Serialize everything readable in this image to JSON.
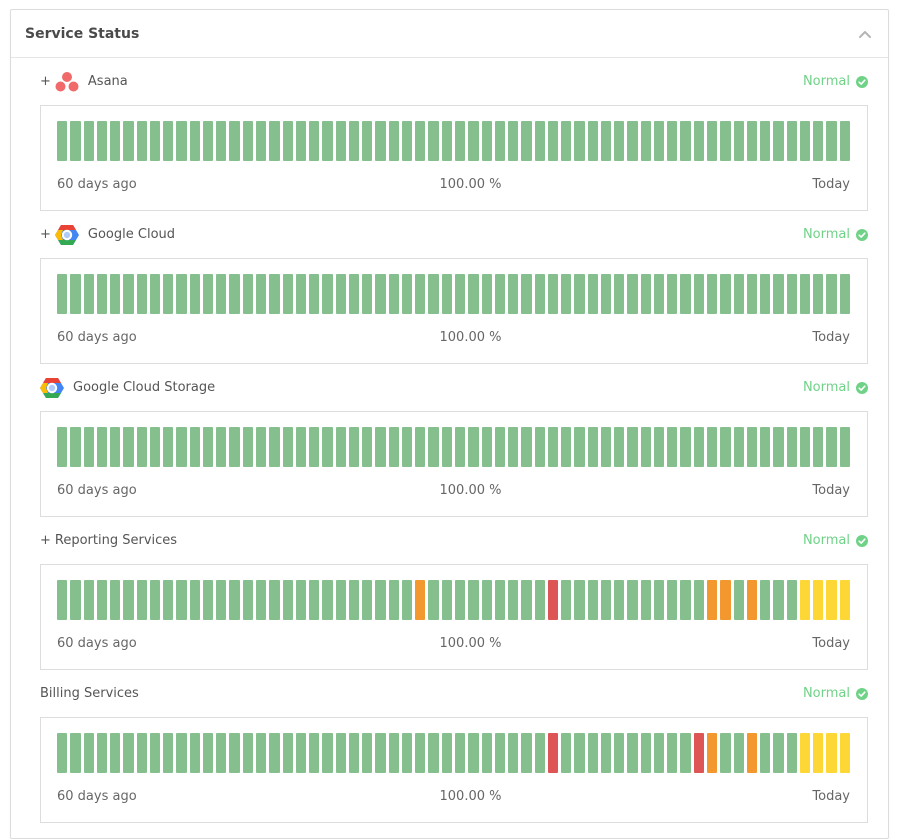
{
  "panel": {
    "title": "Service Status"
  },
  "labels": {
    "start": "60 days ago",
    "end": "Today"
  },
  "colors": {
    "up": "#86bf8e",
    "minor": "#f3982e",
    "major": "#dd5555",
    "warn": "#fcd736",
    "normal": "#6fd287"
  },
  "services": [
    {
      "name": "Asana",
      "expandable": true,
      "logo": "asana-logo-icon",
      "status": "Normal",
      "uptime": "100.00 %",
      "days": "up,up,up,up,up,up,up,up,up,up,up,up,up,up,up,up,up,up,up,up,up,up,up,up,up,up,up,up,up,up,up,up,up,up,up,up,up,up,up,up,up,up,up,up,up,up,up,up,up,up,up,up,up,up,up,up,up,up,up,up"
    },
    {
      "name": "Google Cloud",
      "expandable": true,
      "logo": "google-cloud-logo-icon",
      "status": "Normal",
      "uptime": "100.00 %",
      "days": "up,up,up,up,up,up,up,up,up,up,up,up,up,up,up,up,up,up,up,up,up,up,up,up,up,up,up,up,up,up,up,up,up,up,up,up,up,up,up,up,up,up,up,up,up,up,up,up,up,up,up,up,up,up,up,up,up,up,up,up"
    },
    {
      "name": "Google Cloud Storage",
      "expandable": false,
      "logo": "google-cloud-logo-icon",
      "status": "Normal",
      "uptime": "100.00 %",
      "days": "up,up,up,up,up,up,up,up,up,up,up,up,up,up,up,up,up,up,up,up,up,up,up,up,up,up,up,up,up,up,up,up,up,up,up,up,up,up,up,up,up,up,up,up,up,up,up,up,up,up,up,up,up,up,up,up,up,up,up,up"
    },
    {
      "name": "Reporting Services",
      "expandable": true,
      "logo": "",
      "status": "Normal",
      "uptime": "100.00 %",
      "days": "up,up,up,up,up,up,up,up,up,up,up,up,up,up,up,up,up,up,up,up,up,up,up,up,up,up,up,minor,up,up,up,up,up,up,up,up,up,major,up,up,up,up,up,up,up,up,up,up,up,minor,minor,up,minor,up,up,up,warn,warn,warn,warn"
    },
    {
      "name": "Billing Services",
      "expandable": false,
      "logo": "",
      "status": "Normal",
      "uptime": "100.00 %",
      "days": "up,up,up,up,up,up,up,up,up,up,up,up,up,up,up,up,up,up,up,up,up,up,up,up,up,up,up,up,up,up,up,up,up,up,up,up,up,major,up,up,up,up,up,up,up,up,up,up,major,minor,up,up,minor,up,up,up,warn,warn,warn,warn"
    }
  ]
}
